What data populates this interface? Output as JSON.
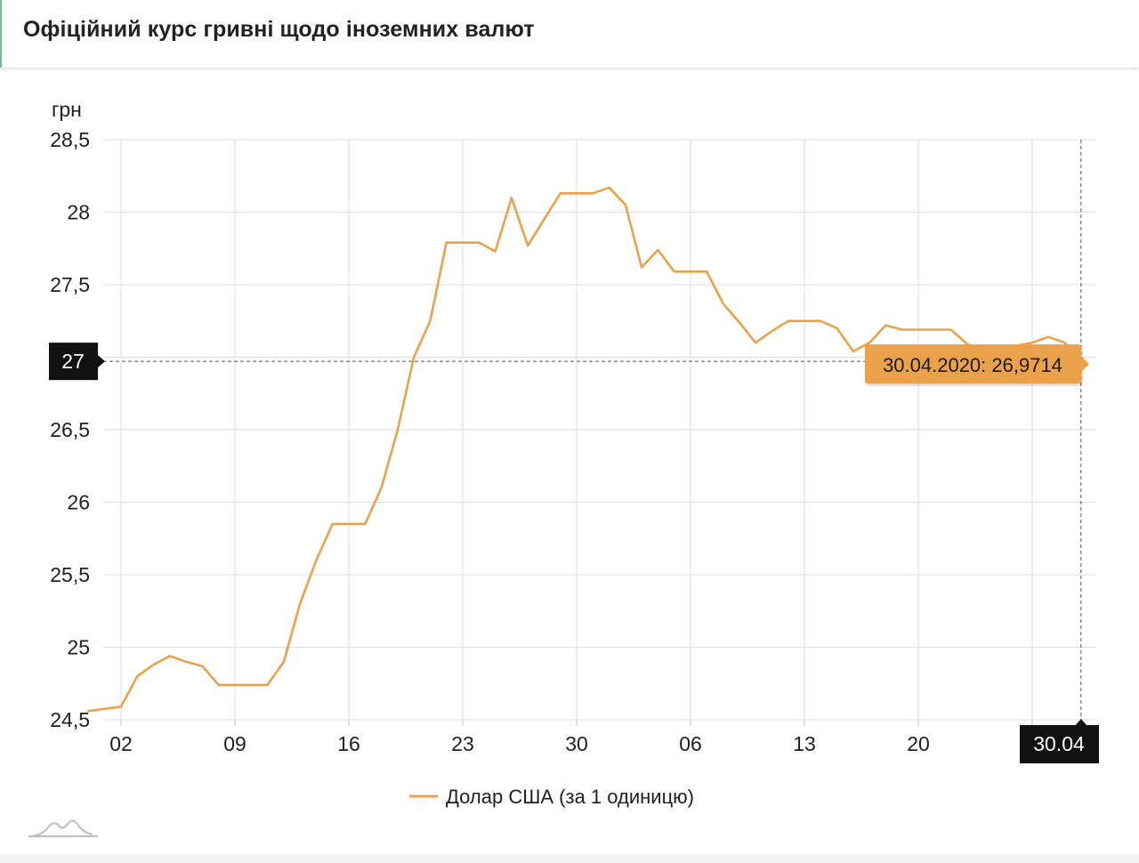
{
  "header": {
    "title": "Офіційний курс гривні щодо іноземних валют"
  },
  "colors": {
    "series": "#eba14a",
    "grid": "#dddddd",
    "crosshair_label_bg": "#111111",
    "tooltip_bg": "#eba14a"
  },
  "icons": {
    "logo": "mountain-logo-icon"
  },
  "chart_data": {
    "type": "line",
    "title": "",
    "ylabel": "грн",
    "xlabel": "",
    "ylim": [
      24.5,
      28.5
    ],
    "y_ticks": [
      {
        "v": 24.5,
        "label": "24,5"
      },
      {
        "v": 25,
        "label": "25"
      },
      {
        "v": 25.5,
        "label": "25,5"
      },
      {
        "v": 26,
        "label": "26"
      },
      {
        "v": 26.5,
        "label": "26,5"
      },
      {
        "v": 27,
        "label": "27"
      },
      {
        "v": 27.5,
        "label": "27,5"
      },
      {
        "v": 28,
        "label": "28"
      },
      {
        "v": 28.5,
        "label": "28,5"
      }
    ],
    "x_start": "2020-03-02",
    "x_end": "2020-04-30",
    "x_ticks": [
      {
        "date": "2020-03-02",
        "label": "02"
      },
      {
        "date": "2020-03-09",
        "label": "09"
      },
      {
        "date": "2020-03-16",
        "label": "16"
      },
      {
        "date": "2020-03-23",
        "label": "23"
      },
      {
        "date": "2020-03-30",
        "label": "30"
      },
      {
        "date": "2020-04-06",
        "label": "06"
      },
      {
        "date": "2020-04-13",
        "label": "13"
      },
      {
        "date": "2020-04-20",
        "label": "20"
      },
      {
        "date": "2020-04-27",
        "label": ""
      }
    ],
    "grid": true,
    "legend": "bottom-center",
    "series": [
      {
        "name": "Долар США (за 1 одиницю)",
        "points": [
          [
            "2020-02-29",
            24.56
          ],
          [
            "2020-03-02",
            24.59
          ],
          [
            "2020-03-03",
            24.8
          ],
          [
            "2020-03-04",
            24.88
          ],
          [
            "2020-03-05",
            24.94
          ],
          [
            "2020-03-06",
            24.9
          ],
          [
            "2020-03-07",
            24.87
          ],
          [
            "2020-03-08",
            24.74
          ],
          [
            "2020-03-09",
            24.74
          ],
          [
            "2020-03-10",
            24.74
          ],
          [
            "2020-03-11",
            24.74
          ],
          [
            "2020-03-12",
            24.9
          ],
          [
            "2020-03-13",
            25.3
          ],
          [
            "2020-03-14",
            25.6
          ],
          [
            "2020-03-15",
            25.85
          ],
          [
            "2020-03-16",
            25.85
          ],
          [
            "2020-03-17",
            25.85
          ],
          [
            "2020-03-18",
            26.1
          ],
          [
            "2020-03-19",
            26.5
          ],
          [
            "2020-03-20",
            27.0
          ],
          [
            "2020-03-21",
            27.25
          ],
          [
            "2020-03-22",
            27.79
          ],
          [
            "2020-03-23",
            27.79
          ],
          [
            "2020-03-24",
            27.79
          ],
          [
            "2020-03-25",
            27.73
          ],
          [
            "2020-03-26",
            28.1
          ],
          [
            "2020-03-27",
            27.77
          ],
          [
            "2020-03-28",
            27.95
          ],
          [
            "2020-03-29",
            28.13
          ],
          [
            "2020-03-30",
            28.13
          ],
          [
            "2020-03-31",
            28.13
          ],
          [
            "2020-04-01",
            28.17
          ],
          [
            "2020-04-02",
            28.05
          ],
          [
            "2020-04-03",
            27.62
          ],
          [
            "2020-04-04",
            27.74
          ],
          [
            "2020-04-05",
            27.59
          ],
          [
            "2020-04-06",
            27.59
          ],
          [
            "2020-04-07",
            27.59
          ],
          [
            "2020-04-08",
            27.37
          ],
          [
            "2020-04-09",
            27.24
          ],
          [
            "2020-04-10",
            27.1
          ],
          [
            "2020-04-11",
            27.18
          ],
          [
            "2020-04-12",
            27.25
          ],
          [
            "2020-04-13",
            27.25
          ],
          [
            "2020-04-14",
            27.25
          ],
          [
            "2020-04-15",
            27.2
          ],
          [
            "2020-04-16",
            27.04
          ],
          [
            "2020-04-17",
            27.1
          ],
          [
            "2020-04-18",
            27.22
          ],
          [
            "2020-04-19",
            27.19
          ],
          [
            "2020-04-20",
            27.19
          ],
          [
            "2020-04-21",
            27.19
          ],
          [
            "2020-04-22",
            27.19
          ],
          [
            "2020-04-23",
            27.09
          ],
          [
            "2020-04-24",
            27.05
          ],
          [
            "2020-04-25",
            27.05
          ],
          [
            "2020-04-26",
            27.08
          ],
          [
            "2020-04-27",
            27.1
          ],
          [
            "2020-04-28",
            27.14
          ],
          [
            "2020-04-29",
            27.1
          ],
          [
            "2020-04-30",
            26.9714
          ]
        ]
      }
    ],
    "crosshair": {
      "date": "2020-04-30",
      "value": 26.9714,
      "y_label": "27",
      "x_label": "30.04",
      "tooltip": "30.04.2020: 26,9714"
    }
  }
}
